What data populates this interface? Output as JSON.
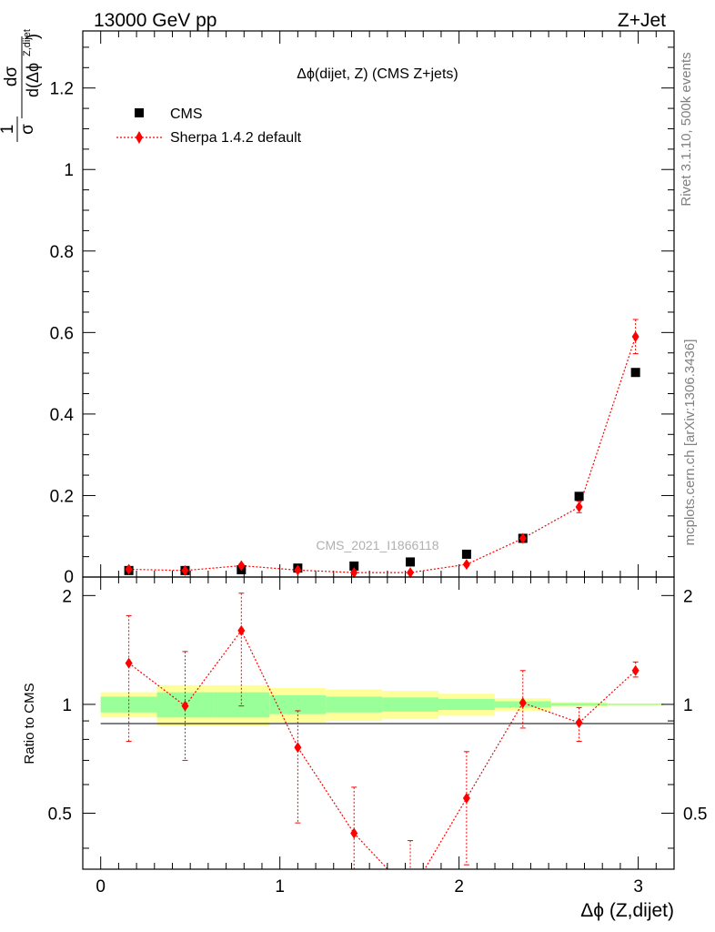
{
  "header": {
    "energy_label": "13000 GeV pp",
    "process_label": "Z+Jet"
  },
  "side_labels": {
    "rivet": "Rivet 3.1.10,  500k events",
    "mcplots": "mcplots.cern.ch [arXiv:1306.3436]"
  },
  "chart_data": {
    "type": "scatter",
    "title": "Δϕ(dijet, Z) (CMS Z+jets)",
    "analysis_label": "CMS_2021_I1866118",
    "xlabel": "Δϕ (Z,dijet)",
    "ylabel": "1/σ dσ/d(Δϕ^Z,dijet)",
    "ratio_ylabel": "Ratio to CMS",
    "xlim": [
      -0.1,
      3.2
    ],
    "ylim": [
      0,
      1.34
    ],
    "ratio_ylim": [
      0.35,
      2.25
    ],
    "legend_position": "top-left",
    "x_ticks": [
      0,
      1,
      2,
      3
    ],
    "y_ticks": [
      0.2,
      0.4,
      0.6,
      0.8,
      1,
      1.2
    ],
    "y_tick_labels": [
      "0.2",
      "0.4",
      "0.6",
      "0.8",
      "1",
      "1.2"
    ],
    "y_bottom_label": "0",
    "ratio_ticks": [
      0.5,
      1,
      2
    ],
    "ratio_tick_labels": [
      "0.5",
      "1",
      "2"
    ],
    "x": [
      0.157,
      0.471,
      0.785,
      1.1,
      1.414,
      1.728,
      2.042,
      2.356,
      2.67,
      2.985
    ],
    "series": [
      {
        "name": "CMS",
        "color": "#000000",
        "marker": "square",
        "values": [
          0.016,
          0.016,
          0.018,
          0.022,
          0.027,
          0.037,
          0.056,
          0.095,
          0.198,
          0.502
        ]
      },
      {
        "name": "Sherpa 1.4.2 default",
        "color": "#ff0000",
        "marker": "diamond",
        "line": "dotted",
        "values": [
          0.019,
          0.016,
          0.028,
          0.017,
          0.011,
          0.011,
          0.031,
          0.095,
          0.172,
          0.59
        ],
        "err_up": [
          0.003,
          0.002,
          0.004,
          0.003,
          0.003,
          0.003,
          0.004,
          0.01,
          0.014,
          0.042
        ],
        "err_down": [
          0.003,
          0.002,
          0.004,
          0.003,
          0.003,
          0.003,
          0.004,
          0.01,
          0.014,
          0.042
        ]
      }
    ],
    "ratio": {
      "values": [
        1.3,
        0.99,
        1.6,
        0.76,
        0.44,
        0.3,
        0.55,
        1.01,
        0.89,
        1.24
      ],
      "err_up": [
        0.46,
        0.41,
        0.43,
        0.2,
        0.15,
        0.12,
        0.19,
        0.23,
        0.09,
        0.07
      ],
      "err_down": [
        0.51,
        0.29,
        0.61,
        0.29,
        0.12,
        0.1,
        0.19,
        0.15,
        0.1,
        0.05
      ]
    },
    "bands": {
      "bin_edges": [
        0,
        0.314,
        0.628,
        0.942,
        1.257,
        1.571,
        1.885,
        2.199,
        2.513,
        2.827,
        3.142
      ],
      "inner_half_width": [
        0.05,
        0.08,
        0.08,
        0.06,
        0.05,
        0.045,
        0.035,
        0.02,
        0.008,
        0.004
      ],
      "outer_half_width": [
        0.08,
        0.13,
        0.13,
        0.11,
        0.1,
        0.09,
        0.07,
        0.04,
        0.015,
        0.006
      ],
      "inner_color": "#99ff99",
      "outer_color": "#ffff99"
    }
  }
}
